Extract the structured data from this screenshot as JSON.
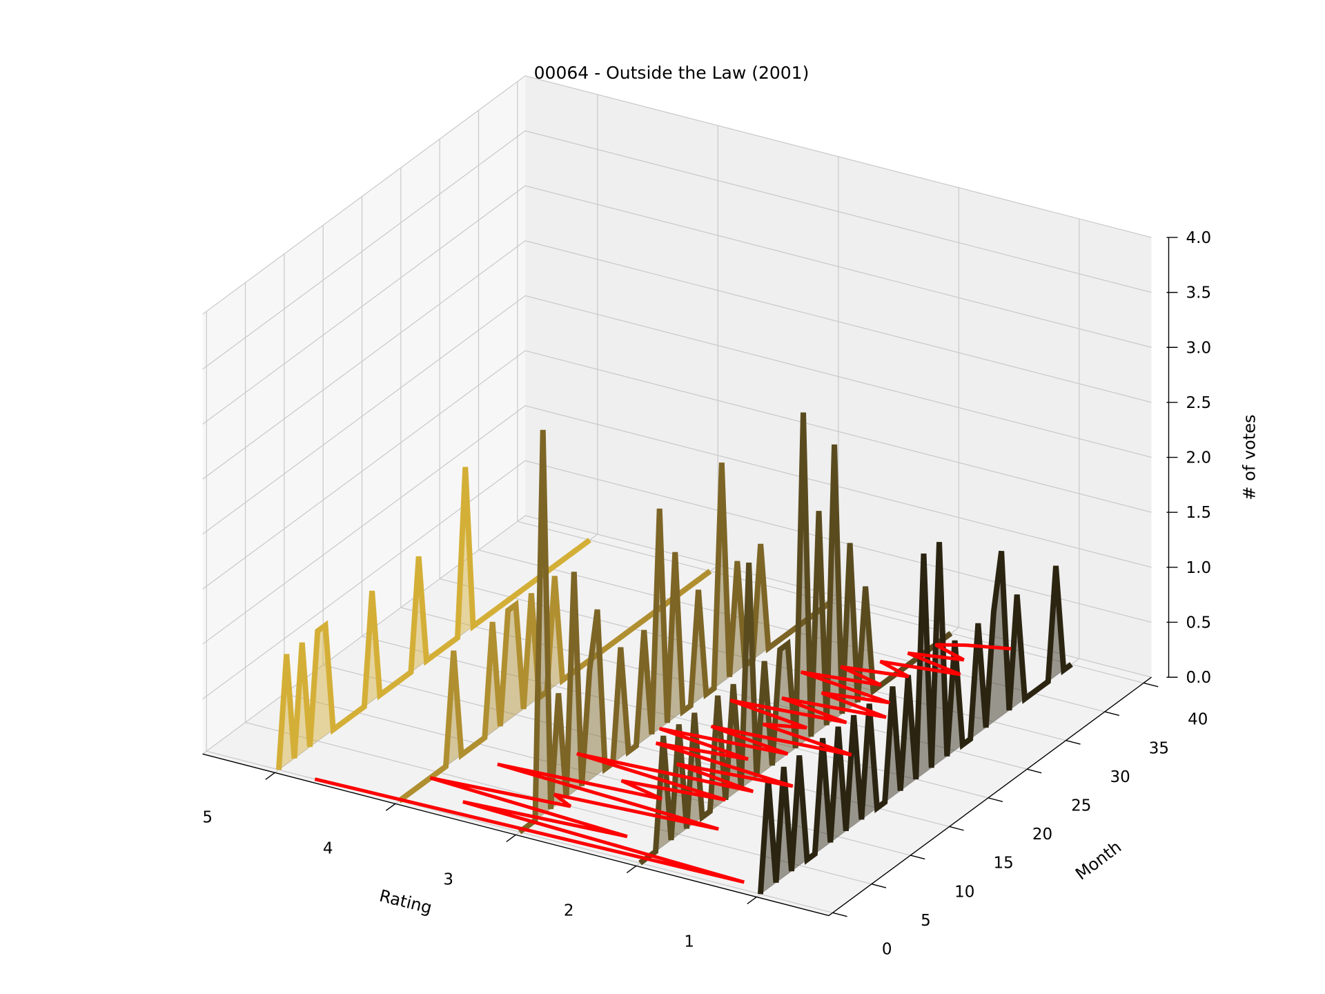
{
  "chart_data": {
    "type": "line3d",
    "title": "00064 - Outside the Law (2001)",
    "x_label": "Rating",
    "y_label": "Month",
    "z_label": "# of votes",
    "x": [
      0,
      1,
      2,
      3,
      4,
      5,
      6,
      7,
      8,
      9,
      10,
      11,
      12,
      13,
      14,
      15,
      16,
      17,
      18,
      19,
      20,
      21,
      22,
      23,
      24,
      25,
      26,
      27,
      28,
      29,
      30,
      31,
      32,
      33,
      34,
      35,
      36,
      37,
      38,
      39,
      40
    ],
    "series": [
      {
        "rating": 5,
        "color": "#d4af37",
        "values": [
          0,
          1,
          0,
          1,
          0,
          1,
          1,
          0,
          0,
          0,
          0,
          0,
          1,
          0,
          0,
          0,
          0,
          0,
          1,
          0,
          0,
          0,
          0,
          0,
          1.5,
          0,
          0,
          0,
          0,
          0,
          0,
          0,
          0,
          0,
          0,
          0,
          0,
          0,
          0,
          0,
          0
        ]
      },
      {
        "rating": 4,
        "color": "#b08f30",
        "values": [
          0,
          0,
          0,
          0,
          0,
          0,
          0,
          1,
          0,
          0,
          0,
          0,
          1,
          0,
          1,
          1,
          0,
          1,
          0,
          0,
          1,
          0,
          0,
          0,
          0,
          0,
          0,
          0,
          0,
          0,
          0,
          0,
          0,
          0,
          0,
          0,
          0,
          0,
          0,
          0,
          0
        ]
      },
      {
        "rating": 3,
        "color": "#7d6526",
        "values": [
          0,
          0,
          0,
          3.5,
          0,
          1,
          0,
          2,
          0,
          1,
          1.5,
          0,
          0,
          1,
          0,
          0,
          1,
          0,
          2,
          0,
          1.5,
          0,
          0,
          1,
          0,
          0,
          2,
          0,
          1,
          0,
          0,
          1,
          0,
          0,
          0,
          0,
          0,
          0,
          0,
          0,
          0
        ]
      },
      {
        "rating": 2,
        "color": "#5a4b1f",
        "values": [
          0,
          0,
          0,
          1,
          0,
          1,
          0,
          1,
          0,
          0,
          1,
          0,
          1,
          0,
          2,
          0,
          1,
          0,
          1,
          1,
          0,
          3,
          0,
          2,
          0,
          2.5,
          0,
          1.5,
          0,
          1,
          0,
          0,
          0,
          0,
          0,
          0,
          0,
          0,
          0,
          0,
          0
        ]
      },
      {
        "rating": 1,
        "color": "#2b2411",
        "values": [
          0,
          1,
          0,
          1,
          0,
          1,
          0,
          0,
          1,
          0,
          1,
          0,
          1,
          0,
          1,
          0,
          0,
          1,
          0,
          1,
          0,
          2,
          0,
          2,
          0,
          1,
          0,
          0,
          1,
          0,
          1,
          1.5,
          0,
          1,
          0,
          0,
          0,
          0,
          1,
          0,
          0
        ]
      }
    ],
    "red_line": {
      "color": "#ff0000",
      "values": [
        4.7,
        1.2,
        3.6,
        2.3,
        4.0,
        2.9,
        3.1,
        1.8,
        3.7,
        2.4,
        2.8,
        2.0,
        3.3,
        1.9,
        2.6,
        1.7,
        2.9,
        2.2,
        3.0,
        2.0,
        2.7,
        1.6,
        2.4,
        2.1,
        2.8,
        1.9,
        2.5,
        1.7,
        2.3,
        1.8,
        2.6,
        2.0,
        2.4,
        1.9,
        2.2,
        1.6,
        2.1,
        1.7,
        2.0,
        1.8,
        1.5
      ]
    },
    "xlim": [
      0.4,
      5.6
    ],
    "ylim": [
      -0.5,
      41
    ],
    "zlim": [
      0,
      4
    ],
    "xticks": [
      1,
      2,
      3,
      4,
      5
    ],
    "yticks": [
      0,
      5,
      10,
      15,
      20,
      25,
      30,
      35,
      40
    ],
    "zticks": [
      {
        "value": 0,
        "label": "0.0"
      },
      0.5,
      {
        "value": 1,
        "label": "1.0"
      },
      1.5,
      {
        "value": 2,
        "label": "2.0"
      },
      2.5,
      {
        "value": 3,
        "label": "3.0"
      },
      3.5,
      {
        "value": 4,
        "label": "4.0"
      }
    ],
    "grid": true
  }
}
